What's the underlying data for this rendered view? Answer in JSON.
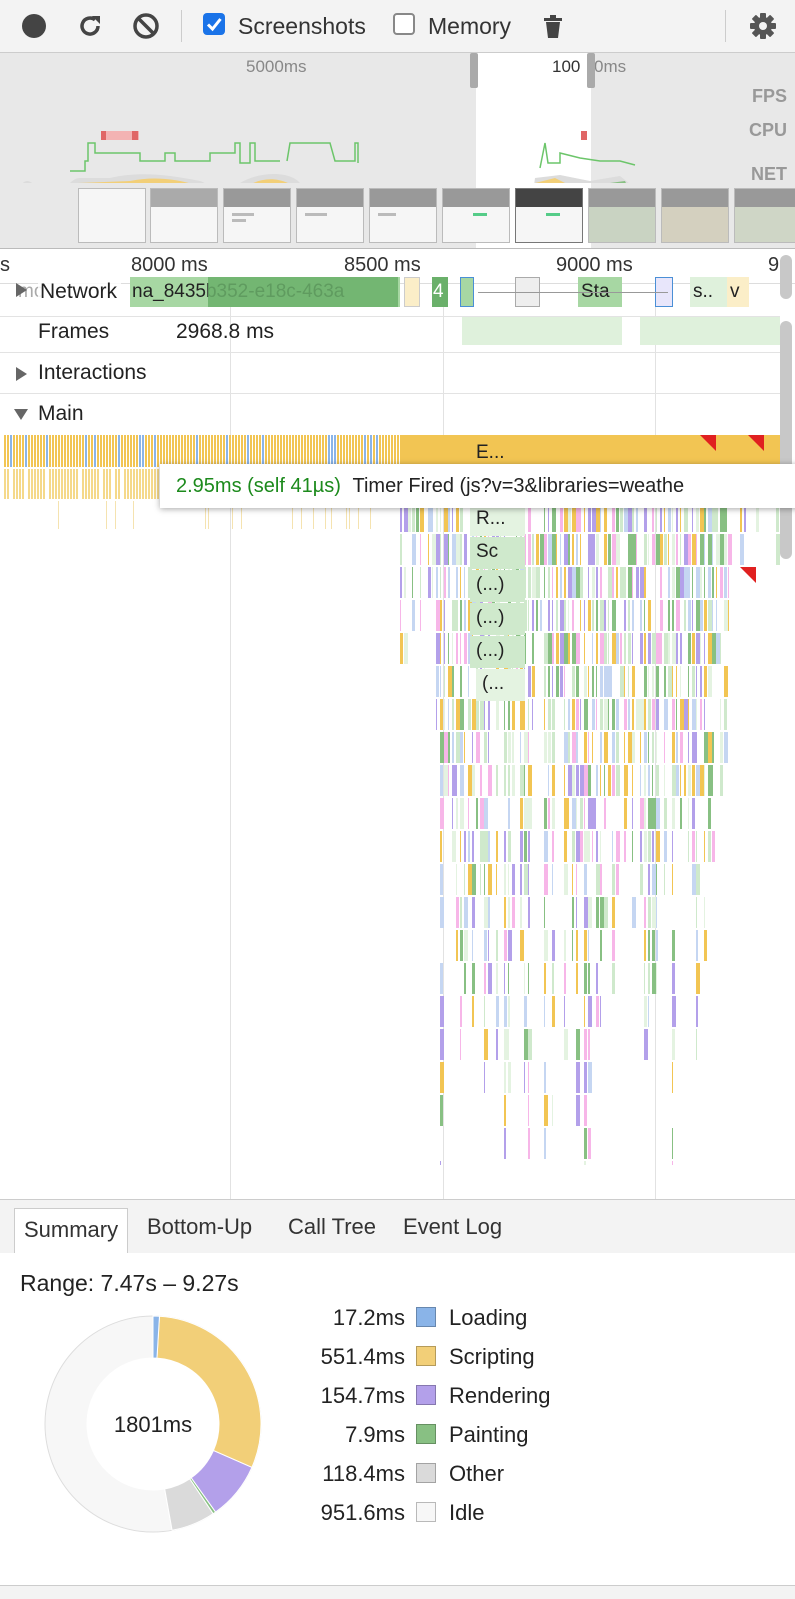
{
  "toolbar": {
    "screenshots_label": "Screenshots",
    "screenshots_checked": true,
    "memory_label": "Memory",
    "memory_checked": false,
    "accent": "#1a73e8"
  },
  "overview": {
    "time_left": "5000ms",
    "time_right_a": "100",
    "time_right_b": "0ms",
    "labels": [
      "FPS",
      "CPU",
      "NET"
    ]
  },
  "timeline": {
    "ticks": [
      "s",
      "8000 ms",
      "8500 ms",
      "9000 ms",
      "9"
    ],
    "tracks": {
      "network": "Network",
      "network_request": "na_8435b352-e18c-463a",
      "network_ghost": "mo",
      "network_small_a": "4",
      "network_small_b": "Sta",
      "network_small_c": "s..",
      "network_small_d": "v",
      "frames": "Frames",
      "frames_value": "2968.8 ms",
      "interactions": "Interactions",
      "main": "Main"
    },
    "stack_labels": [
      "E...",
      "R...",
      "Sc",
      "(...)",
      "(...)",
      "(...)",
      "(..."
    ],
    "tooltip": {
      "duration": "2.95ms (self 41µs)",
      "title": "Timer Fired (js?v=3&libraries=weathe"
    }
  },
  "tabs": [
    "Summary",
    "Bottom-Up",
    "Call Tree",
    "Event Log"
  ],
  "active_tab": "Summary",
  "summary": {
    "range": "Range: 7.47s – 9.27s",
    "total": "1801ms",
    "categories": [
      {
        "value": "17.2ms",
        "name": "Loading",
        "ms": 17.2,
        "color": "#8ab4e8"
      },
      {
        "value": "551.4ms",
        "name": "Scripting",
        "ms": 551.4,
        "color": "#f2cf78"
      },
      {
        "value": "154.7ms",
        "name": "Rendering",
        "ms": 154.7,
        "color": "#b3a0ea"
      },
      {
        "value": "7.9ms",
        "name": "Painting",
        "ms": 7.9,
        "color": "#88c083"
      },
      {
        "value": "118.4ms",
        "name": "Other",
        "ms": 118.4,
        "color": "#dadada"
      },
      {
        "value": "951.6ms",
        "name": "Idle",
        "ms": 951.6,
        "color": "#f7f7f7"
      }
    ]
  }
}
